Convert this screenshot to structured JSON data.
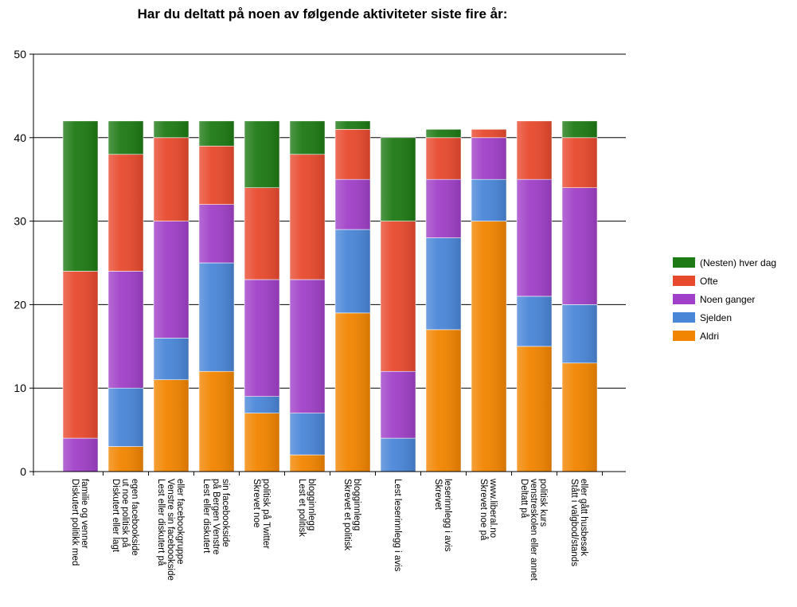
{
  "chart_data": {
    "type": "bar",
    "stacked": true,
    "title": "Har du deltatt på noen av følgende aktiviteter siste fire år:",
    "xlabel": "",
    "ylabel": "",
    "ylim": [
      0,
      50
    ],
    "yticks": [
      0,
      10,
      20,
      30,
      40,
      50
    ],
    "grid": true,
    "legend_position": "right",
    "categories": [
      [
        "Diskutert politikk med",
        "familie og venner"
      ],
      [
        "Diskutert eller lagt",
        "ut noe politisk på",
        "egen facebookside"
      ],
      [
        "Lest eller diskutert på",
        "Venstre sin facebookside",
        "eller facebookgruppe"
      ],
      [
        "Lest eller diskutert",
        "på Bergen Venstre",
        "sin facebookside"
      ],
      [
        "Skrevet noe",
        "politisk på Twitter"
      ],
      [
        "Lest et politisk",
        "blogginnlegg"
      ],
      [
        "Skrevet et politisk",
        "blogginnlegg"
      ],
      [
        "Lest leserinnlegg i avis"
      ],
      [
        "Skrevet",
        "leserinnlegg i avis"
      ],
      [
        "Skrevet noe på",
        "www.liberal.no"
      ],
      [
        "Deltatt på",
        "venstreskolen eller annet",
        "politisk kurs"
      ],
      [
        "Stått i valgbod/stands",
        "eller gått husbesøk"
      ]
    ],
    "series": [
      {
        "name": "Aldri",
        "color": "#f28500",
        "values": [
          0,
          3,
          11,
          12,
          7,
          2,
          19,
          0,
          17,
          30,
          15,
          13
        ]
      },
      {
        "name": "Sjelden",
        "color": "#4a86d8",
        "values": [
          0,
          7,
          5,
          13,
          2,
          5,
          10,
          4,
          11,
          5,
          6,
          7
        ]
      },
      {
        "name": "Noen ganger",
        "color": "#a040c8",
        "values": [
          4,
          14,
          14,
          7,
          14,
          16,
          6,
          8,
          7,
          5,
          14,
          14
        ]
      },
      {
        "name": "Ofte",
        "color": "#e84a2e",
        "values": [
          20,
          14,
          10,
          7,
          11,
          15,
          6,
          18,
          5,
          1,
          7,
          6
        ]
      },
      {
        "name": "(Nesten) hver dag",
        "color": "#1e7a14",
        "values": [
          18,
          4,
          2,
          3,
          8,
          4,
          1,
          10,
          1,
          0,
          0,
          2
        ]
      }
    ]
  }
}
